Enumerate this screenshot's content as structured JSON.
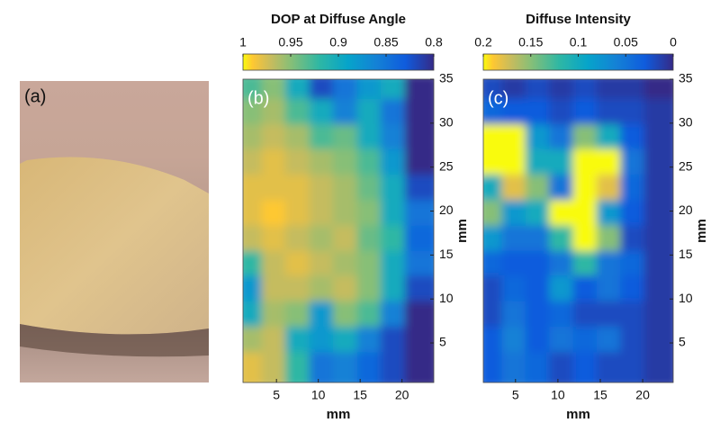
{
  "photo": {
    "label": "(a)"
  },
  "chart_data": [
    {
      "type": "heatmap",
      "title": "DOP at Diffuse Angle",
      "panel_label": "(b)",
      "colormap": "parula",
      "clim": [
        1,
        0.8
      ],
      "cticks": [
        1,
        0.95,
        0.9,
        0.85,
        0.8
      ],
      "xlabel": "mm",
      "ylabel": "mm",
      "xlim": [
        1,
        23.8
      ],
      "ylim": [
        0.5,
        35
      ],
      "xticks": [
        5,
        10,
        15,
        20
      ],
      "yticks": [
        5,
        10,
        15,
        20,
        25,
        30,
        35
      ],
      "x": [
        2.4,
        5.3,
        8.1,
        11,
        13.8,
        16.7,
        19.5,
        22.4
      ],
      "y": [
        33.6,
        30.7,
        27.8,
        25,
        22.1,
        19.2,
        16.3,
        13.4,
        10.6,
        7.7,
        4.8,
        1.9
      ],
      "values": [
        [
          0.93,
          0.95,
          0.9,
          0.82,
          0.85,
          0.88,
          0.9,
          0.8
        ],
        [
          0.95,
          0.96,
          0.93,
          0.9,
          0.86,
          0.9,
          0.85,
          0.8
        ],
        [
          0.96,
          0.97,
          0.96,
          0.93,
          0.94,
          0.9,
          0.86,
          0.8
        ],
        [
          0.97,
          0.98,
          0.97,
          0.96,
          0.95,
          0.93,
          0.88,
          0.8
        ],
        [
          0.98,
          0.98,
          0.98,
          0.97,
          0.96,
          0.94,
          0.9,
          0.82
        ],
        [
          0.98,
          0.99,
          0.98,
          0.97,
          0.96,
          0.95,
          0.9,
          0.85
        ],
        [
          0.97,
          0.98,
          0.97,
          0.96,
          0.97,
          0.94,
          0.92,
          0.84
        ],
        [
          0.92,
          0.97,
          0.98,
          0.97,
          0.96,
          0.95,
          0.9,
          0.85
        ],
        [
          0.88,
          0.97,
          0.97,
          0.96,
          0.97,
          0.95,
          0.9,
          0.82
        ],
        [
          0.9,
          0.96,
          0.95,
          0.88,
          0.95,
          0.93,
          0.86,
          0.8
        ],
        [
          0.96,
          0.97,
          0.9,
          0.88,
          0.9,
          0.86,
          0.82,
          0.8
        ],
        [
          0.98,
          0.97,
          0.92,
          0.85,
          0.86,
          0.84,
          0.82,
          0.8
        ]
      ]
    },
    {
      "type": "heatmap",
      "title": "Diffuse Intensity",
      "panel_label": "(c)",
      "colormap": "parula",
      "clim": [
        0.2,
        0
      ],
      "cticks": [
        0.2,
        0.15,
        0.1,
        0.05,
        0
      ],
      "xlabel": "mm",
      "ylabel": "mm",
      "xlim": [
        1.2,
        23.6
      ],
      "ylim": [
        0.5,
        35
      ],
      "xticks": [
        5,
        10,
        15,
        20
      ],
      "yticks": [
        5,
        10,
        15,
        20,
        25,
        30,
        35
      ],
      "x": [
        2.6,
        5.4,
        8.2,
        11,
        13.8,
        16.6,
        19.4,
        22.2
      ],
      "y": [
        33.6,
        30.7,
        27.8,
        25,
        22.1,
        19.2,
        16.3,
        13.4,
        10.6,
        7.7,
        4.8,
        1.9
      ],
      "values": [
        [
          0.02,
          0.01,
          0.02,
          0.01,
          0.02,
          0.01,
          0.01,
          0
        ],
        [
          0.04,
          0.03,
          0.03,
          0.02,
          0.03,
          0.02,
          0.02,
          0.01
        ],
        [
          0.2,
          0.2,
          0.08,
          0.05,
          0.15,
          0.1,
          0.03,
          0.01
        ],
        [
          0.2,
          0.2,
          0.1,
          0.1,
          0.2,
          0.2,
          0.05,
          0.01
        ],
        [
          0.1,
          0.18,
          0.15,
          0.05,
          0.2,
          0.18,
          0.04,
          0.01
        ],
        [
          0.15,
          0.08,
          0.1,
          0.2,
          0.2,
          0.08,
          0.03,
          0.01
        ],
        [
          0.08,
          0.05,
          0.05,
          0.12,
          0.2,
          0.15,
          0.02,
          0.01
        ],
        [
          0.04,
          0.03,
          0.03,
          0.05,
          0.12,
          0.05,
          0.04,
          0.01
        ],
        [
          0.02,
          0.04,
          0.03,
          0.08,
          0.03,
          0.05,
          0.03,
          0.01
        ],
        [
          0.02,
          0.05,
          0.03,
          0.04,
          0.02,
          0.02,
          0.02,
          0.01
        ],
        [
          0.03,
          0.06,
          0.03,
          0.05,
          0.04,
          0.05,
          0.02,
          0.01
        ],
        [
          0.03,
          0.05,
          0.04,
          0.02,
          0.03,
          0.02,
          0.02,
          0.01
        ]
      ]
    }
  ]
}
